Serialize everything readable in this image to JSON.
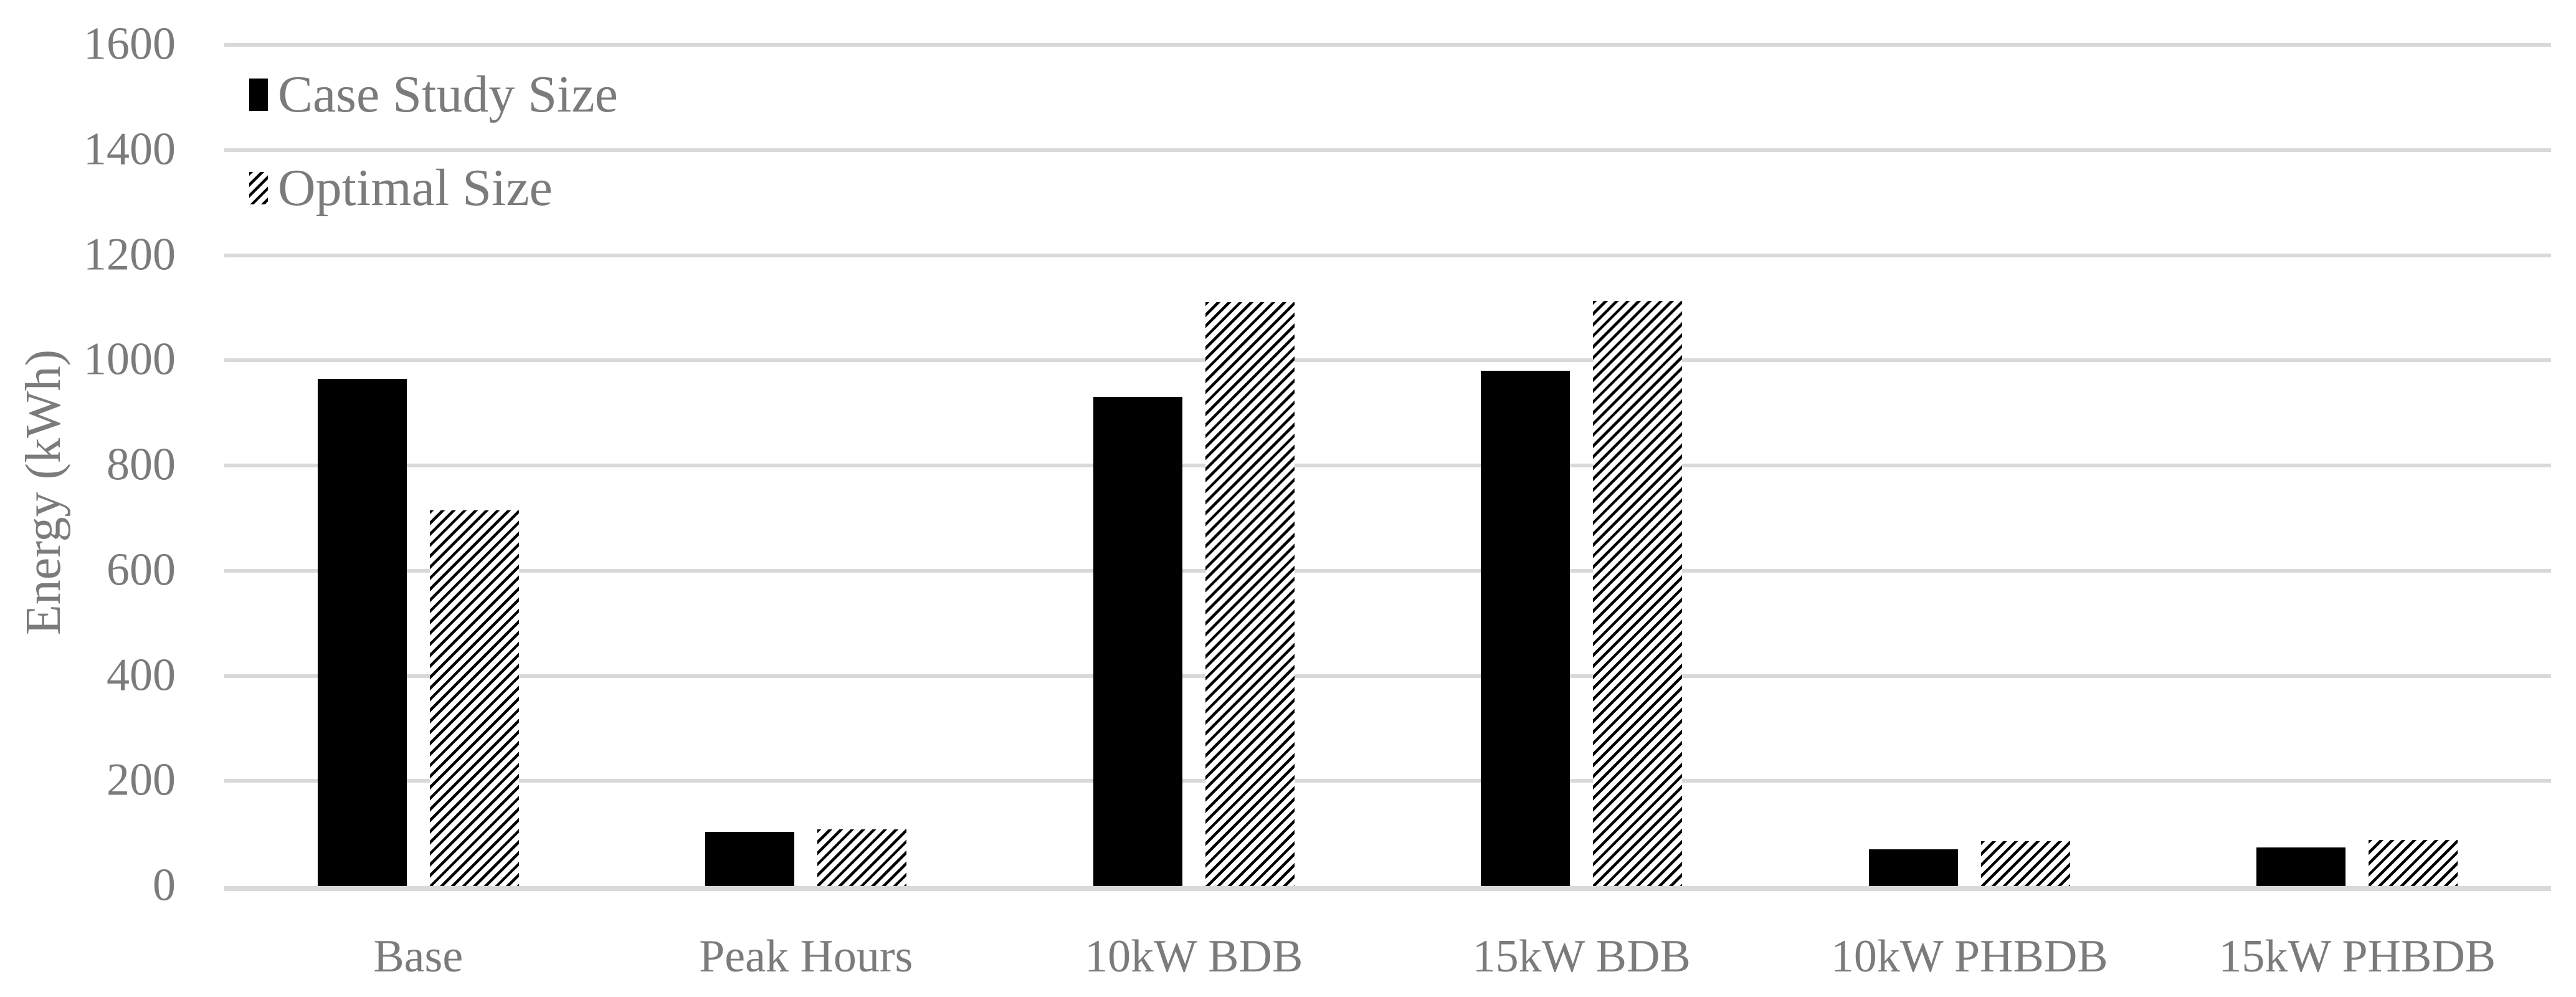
{
  "chart_data": {
    "type": "bar",
    "title": "",
    "ylabel": "Energy (kWh)",
    "xlabel": "",
    "categories": [
      "Base",
      "Peak Hours",
      "10kW BDB",
      "15kW BDB",
      "10kW PHBDB",
      "15kW PHBDB"
    ],
    "series": [
      {
        "name": "Case Study Size",
        "pattern": "solid-black",
        "values": [
          965,
          103,
          930,
          980,
          70,
          74
        ]
      },
      {
        "name": "Optimal Size",
        "pattern": "diagonal-hatch",
        "values": [
          715,
          108,
          1110,
          1113,
          85,
          88
        ]
      }
    ],
    "ylim": [
      0,
      1600
    ],
    "y_tick_step": 200,
    "y_ticks": [
      0,
      200,
      400,
      600,
      800,
      1000,
      1200,
      1400,
      1600
    ],
    "grid": "horizontal",
    "legend_position": "top-left-inside"
  },
  "colors": {
    "bar_fill": "#000000",
    "hatch_foreground": "#000000",
    "hatch_background": "#ffffff",
    "text_gray": "#7b7b7b",
    "gridline": "#d9d9d9",
    "background": "#ffffff"
  }
}
